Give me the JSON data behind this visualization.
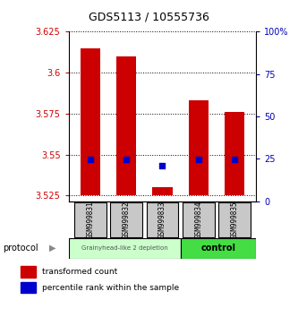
{
  "title": "GDS5113 / 10555736",
  "samples": [
    "GSM999831",
    "GSM999832",
    "GSM999833",
    "GSM999834",
    "GSM999835"
  ],
  "bar_bottoms": [
    3.525,
    3.525,
    3.525,
    3.525,
    3.525
  ],
  "bar_tops": [
    3.615,
    3.61,
    3.53,
    3.583,
    3.576
  ],
  "blue_y": [
    3.547,
    3.547,
    3.543,
    3.547,
    3.547
  ],
  "ylim": [
    3.5215,
    3.625
  ],
  "yticks": [
    3.525,
    3.55,
    3.575,
    3.6,
    3.625
  ],
  "ytick_labels": [
    "3.525",
    "3.55",
    "3.575",
    "3.6",
    "3.625"
  ],
  "right_yticks": [
    0,
    25,
    50,
    75,
    100
  ],
  "right_ylim": [
    0,
    100
  ],
  "bar_color": "#cc0000",
  "blue_color": "#0000cc",
  "group1_color": "#ccffcc",
  "group2_color": "#44dd44",
  "group1_label": "Grainyhead-like 2 depletion",
  "group2_label": "control",
  "group1_samples": [
    0,
    1,
    2
  ],
  "group2_samples": [
    3,
    4
  ],
  "protocol_label": "protocol",
  "legend_red": "transformed count",
  "legend_blue": "percentile rank within the sample",
  "bar_width": 0.55,
  "dotted_grid_color": "#000000",
  "background_color": "#ffffff",
  "ylabel_color": "#cc0000",
  "right_ylabel_color": "#0000bb"
}
